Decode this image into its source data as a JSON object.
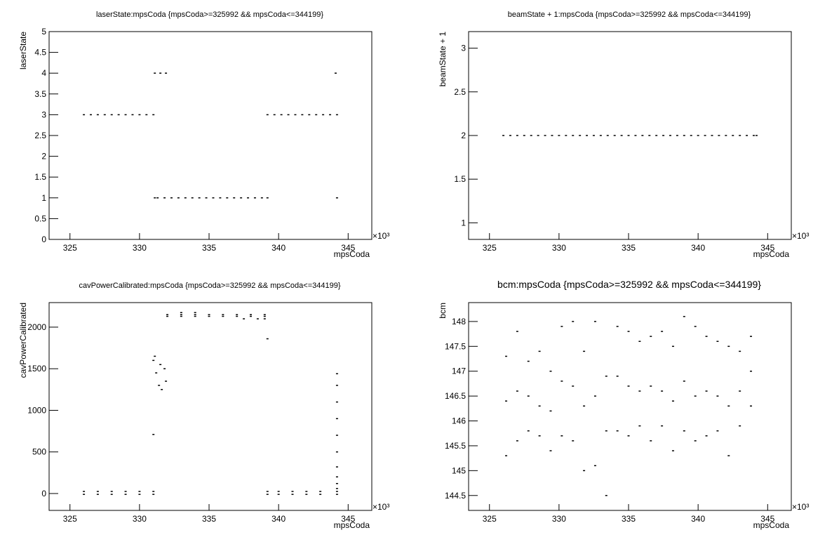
{
  "chart_data": [
    {
      "type": "scatter",
      "title": "laserState:mpsCoda {mpsCoda>=325992 && mpsCoda<=344199}",
      "xlabel": "mpsCoda",
      "ylabel": "laserState",
      "x_multiplier": "×10³",
      "color": "#000000",
      "xlim": [
        323.5,
        346.7
      ],
      "xticks": [
        325,
        330,
        335,
        340,
        345
      ],
      "ylim": [
        0,
        5
      ],
      "yticks": [
        0,
        0.5,
        1,
        1.5,
        2,
        2.5,
        3,
        3.5,
        4,
        4.5,
        5
      ],
      "x": [
        326,
        326.5,
        327,
        327.5,
        328,
        328.5,
        329,
        329.5,
        330,
        330.5,
        331,
        331.1,
        331.5,
        331.9,
        331.1,
        331.3,
        331.8,
        332.3,
        332.8,
        333.3,
        333.8,
        334.3,
        334.8,
        335.3,
        335.8,
        336.3,
        336.8,
        337.3,
        337.8,
        338.3,
        338.8,
        339.2,
        339.2,
        339.7,
        340.2,
        340.7,
        341.2,
        341.7,
        342.2,
        342.7,
        343.2,
        343.7,
        344.2,
        344.1,
        344.2
      ],
      "y": [
        3,
        3,
        3,
        3,
        3,
        3,
        3,
        3,
        3,
        3,
        3,
        4,
        4,
        4,
        1,
        1,
        1,
        1,
        1,
        1,
        1,
        1,
        1,
        1,
        1,
        1,
        1,
        1,
        1,
        1,
        1,
        1,
        3,
        3,
        3,
        3,
        3,
        3,
        3,
        3,
        3,
        3,
        3,
        4,
        1
      ]
    },
    {
      "type": "scatter",
      "title": "beamState + 1:mpsCoda {mpsCoda>=325992 && mpsCoda<=344199}",
      "xlabel": "mpsCoda",
      "ylabel": "beamState + 1",
      "x_multiplier": "×10³",
      "color": "#000000",
      "xlim": [
        323.5,
        346.7
      ],
      "xticks": [
        325,
        330,
        335,
        340,
        345
      ],
      "ylim": [
        0.81,
        3.19
      ],
      "yticks": [
        1,
        1.5,
        2,
        2.5,
        3
      ],
      "x": [
        326,
        326.5,
        327,
        327.5,
        328,
        328.5,
        329,
        329.5,
        330,
        330.5,
        331,
        331.5,
        332,
        332.5,
        333,
        333.5,
        334,
        334.5,
        335,
        335.5,
        336,
        336.5,
        337,
        337.5,
        338,
        338.5,
        339,
        339.5,
        340,
        340.5,
        341,
        341.5,
        342,
        342.5,
        343,
        343.5,
        344,
        344.2
      ],
      "y": [
        2,
        2,
        2,
        2,
        2,
        2,
        2,
        2,
        2,
        2,
        2,
        2,
        2,
        2,
        2,
        2,
        2,
        2,
        2,
        2,
        2,
        2,
        2,
        2,
        2,
        2,
        2,
        2,
        2,
        2,
        2,
        2,
        2,
        2,
        2,
        2,
        2,
        2
      ]
    },
    {
      "type": "scatter",
      "title": "cavPowerCalibrated:mpsCoda {mpsCoda>=325992 && mpsCoda<=344199}",
      "xlabel": "mpsCoda",
      "ylabel": "cavPowerCalibrated",
      "x_multiplier": "×10³",
      "color": "#000000",
      "xlim": [
        323.5,
        346.7
      ],
      "xticks": [
        325,
        330,
        335,
        340,
        345
      ],
      "ylim": [
        -203,
        2295
      ],
      "yticks": [
        0,
        500,
        1000,
        1500,
        2000
      ],
      "x": [
        326,
        326,
        327,
        327,
        328,
        328,
        329,
        329,
        330,
        330,
        331,
        331,
        339.2,
        339.2,
        340,
        340,
        341,
        341,
        342,
        342,
        343,
        343,
        344.2,
        344.2,
        332,
        332,
        333,
        333,
        334,
        334,
        335,
        335,
        336,
        336,
        337,
        337,
        338,
        338,
        339,
        339,
        337.5,
        338.5,
        339,
        333,
        334,
        331,
        331.2,
        331.4,
        331.6,
        331.8,
        331.1,
        331.5,
        331.9,
        331,
        339.2,
        344.2,
        344.2,
        344.2,
        344.2,
        344.2,
        344.2,
        344.2,
        344.2,
        344.2,
        344.2
      ],
      "y": [
        25,
        -10,
        25,
        -10,
        25,
        -10,
        25,
        -10,
        25,
        -10,
        25,
        -10,
        25,
        -10,
        25,
        -10,
        25,
        -10,
        25,
        -10,
        25,
        -10,
        25,
        -10,
        2150,
        2130,
        2150,
        2130,
        2150,
        2130,
        2150,
        2130,
        2150,
        2130,
        2150,
        2130,
        2150,
        2130,
        2150,
        2130,
        2100,
        2100,
        2100,
        2175,
        2175,
        1600,
        1450,
        1300,
        1250,
        1500,
        1650,
        1550,
        1350,
        710,
        1860,
        1440,
        1300,
        1100,
        900,
        700,
        500,
        320,
        200,
        120,
        60
      ]
    },
    {
      "type": "scatter",
      "title": "bcm:mpsCoda {mpsCoda>=325992 && mpsCoda<=344199}",
      "xlabel": "mpsCoda",
      "ylabel": "bcm",
      "x_multiplier": "×10³",
      "color": "#000000",
      "xlim": [
        323.5,
        346.7
      ],
      "xticks": [
        325,
        330,
        335,
        340,
        345
      ],
      "ylim": [
        144.2,
        148.38
      ],
      "yticks": [
        144.5,
        145,
        145.5,
        146,
        146.5,
        147,
        147.5,
        148
      ],
      "x": [
        326.2,
        326.2,
        326.2,
        327,
        327,
        327,
        327.8,
        327.8,
        327.8,
        328.6,
        328.6,
        328.6,
        329.4,
        329.4,
        329.4,
        330.2,
        330.2,
        330.2,
        331,
        331,
        331,
        331.8,
        331.8,
        331.8,
        332.6,
        332.6,
        332.6,
        333.4,
        333.4,
        333.4,
        334.2,
        334.2,
        334.2,
        335,
        335,
        335,
        335.8,
        335.8,
        335.8,
        336.6,
        336.6,
        336.6,
        337.4,
        337.4,
        337.4,
        338.2,
        338.2,
        338.2,
        339,
        339,
        339,
        339.8,
        339.8,
        339.8,
        340.6,
        340.6,
        340.6,
        341.4,
        341.4,
        341.4,
        342.2,
        342.2,
        342.2,
        343,
        343,
        343,
        343.8,
        343.8,
        343.8
      ],
      "y": [
        145.3,
        147.3,
        146.4,
        145.6,
        147.8,
        146.6,
        145.8,
        147.2,
        146.5,
        145.7,
        147.4,
        146.3,
        145.4,
        147,
        146.2,
        145.7,
        147.9,
        146.8,
        145.6,
        148,
        146.7,
        145,
        147.4,
        146.3,
        145.1,
        148,
        146.5,
        144.5,
        146.9,
        145.8,
        145.8,
        147.9,
        146.9,
        145.7,
        147.8,
        146.7,
        145.9,
        147.6,
        146.6,
        145.6,
        147.7,
        146.7,
        145.9,
        147.8,
        146.6,
        145.4,
        147.5,
        146.4,
        145.8,
        148.1,
        146.8,
        145.6,
        147.9,
        146.5,
        145.7,
        147.7,
        146.6,
        145.8,
        147.6,
        146.5,
        145.3,
        147.5,
        146.3,
        145.9,
        147.4,
        146.6,
        146.3,
        147.7,
        147
      ]
    }
  ]
}
